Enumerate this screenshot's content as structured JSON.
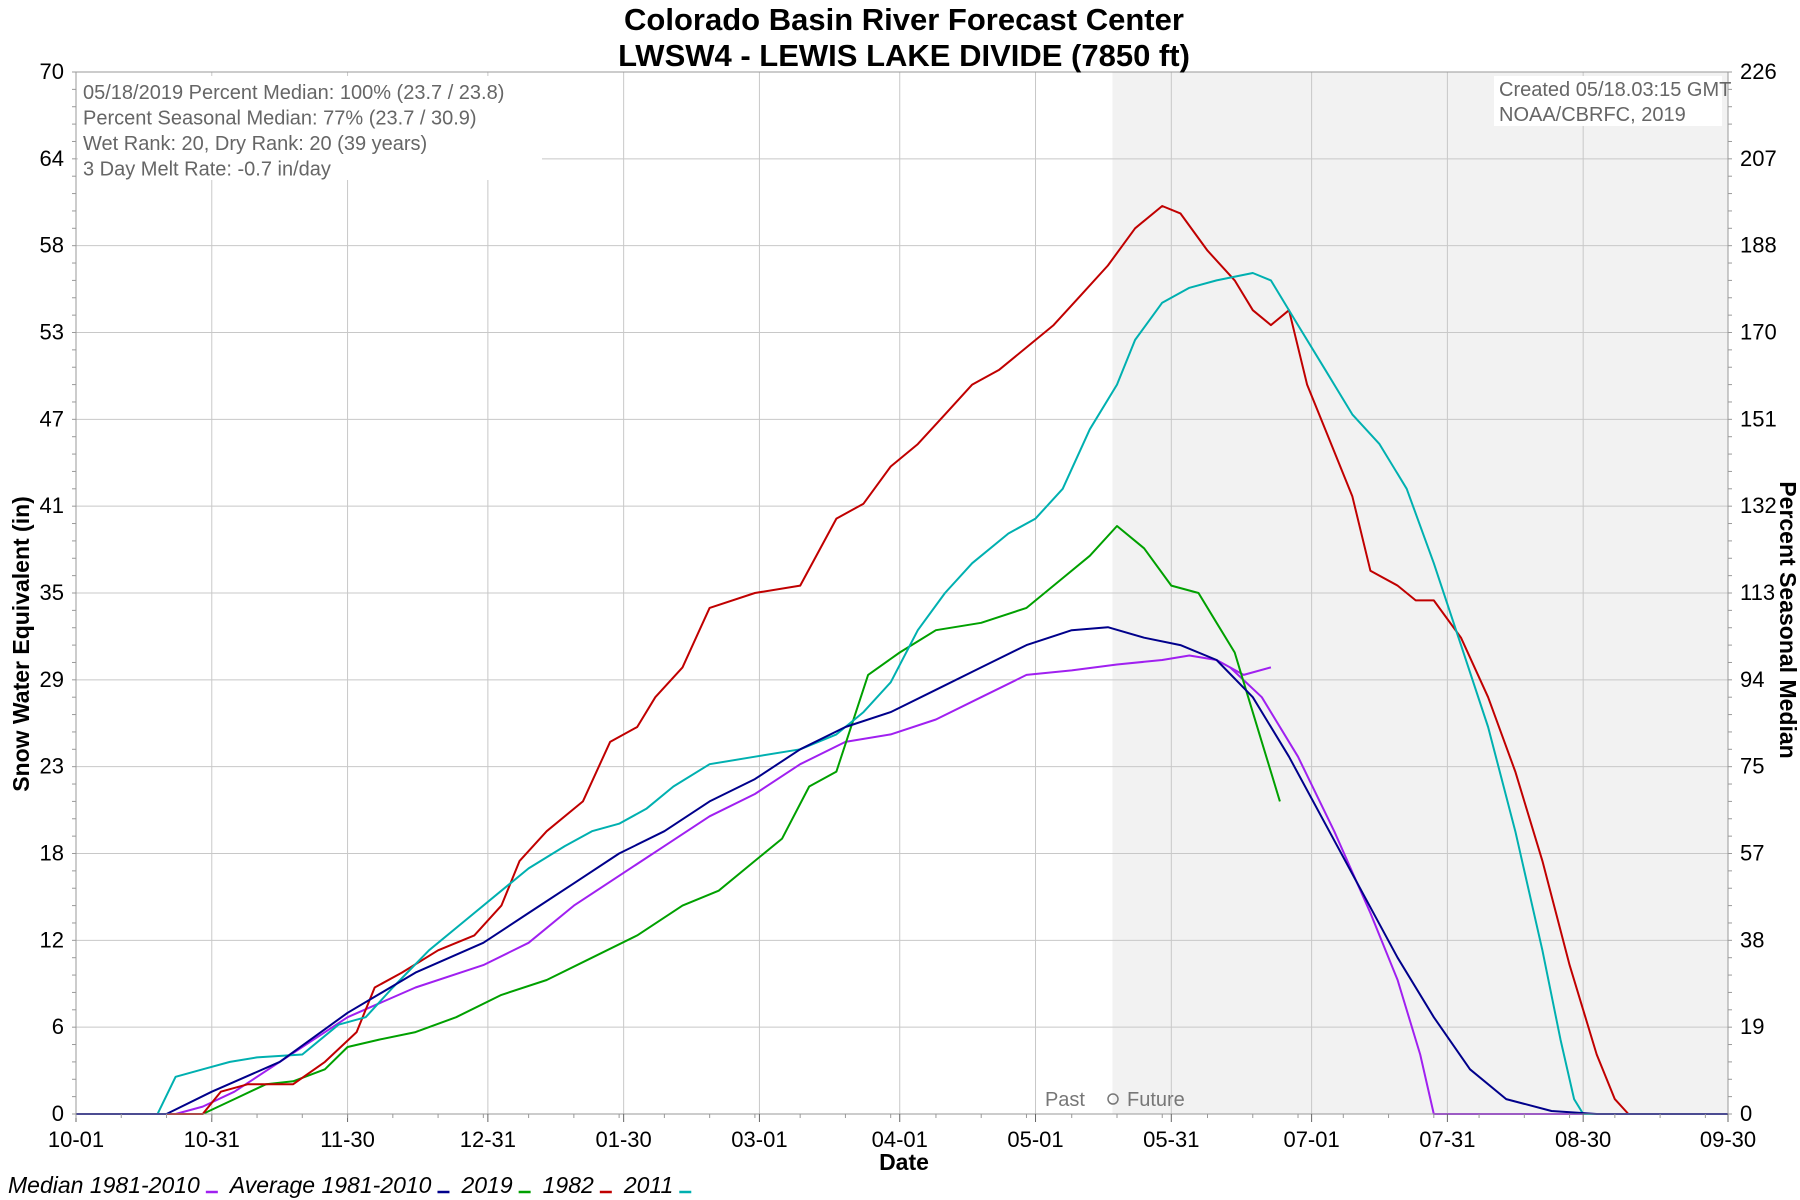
{
  "chart_data": {
    "type": "line",
    "title": "Colorado Basin River Forecast Center",
    "subtitle": "LWSW4 - LEWIS LAKE DIVIDE (7850 ft)",
    "xlabel": "Date",
    "ylabel": "Snow Water Equivalent (in)",
    "y2label": "Percent Seasonal Median",
    "ylim": [
      0,
      70
    ],
    "y2lim": [
      0,
      226
    ],
    "xlim_days": [
      0,
      365
    ],
    "x_ticks": [
      "10-01",
      "10-31",
      "11-30",
      "12-31",
      "01-30",
      "03-01",
      "04-01",
      "05-01",
      "05-31",
      "07-01",
      "07-31",
      "08-30",
      "09-30"
    ],
    "y_ticks": [
      "0",
      "6",
      "12",
      "18",
      "23",
      "29",
      "35",
      "41",
      "47",
      "53",
      "58",
      "64",
      "70"
    ],
    "y2_ticks": [
      "0",
      "19",
      "38",
      "57",
      "75",
      "94",
      "113",
      "132",
      "151",
      "170",
      "188",
      "207",
      "226"
    ],
    "grid": true,
    "future_shade_start": "05-18",
    "past_future_label": [
      "Past",
      "Future"
    ],
    "info_text": [
      "05/18/2019 Percent Median: 100% (23.7 / 23.8)",
      "Percent Seasonal Median: 77% (23.7 / 30.9)",
      "Wet Rank: 20, Dry Rank: 20  (39 years)",
      "3 Day Melt Rate: -0.7 in/day"
    ],
    "credit_text": [
      "Created 05/18.03:15 GMT",
      "NOAA/CBRFC, 2019"
    ],
    "series": [
      {
        "name": "Median 1981-2010",
        "color": "#a020f0",
        "points": [
          [
            0,
            0
          ],
          [
            22,
            0
          ],
          [
            28,
            0.5
          ],
          [
            35,
            1.5
          ],
          [
            45,
            3.5
          ],
          [
            60,
            6.5
          ],
          [
            75,
            8.5
          ],
          [
            90,
            10
          ],
          [
            100,
            11.5
          ],
          [
            110,
            14
          ],
          [
            120,
            16
          ],
          [
            130,
            18
          ],
          [
            140,
            20
          ],
          [
            150,
            21.5
          ],
          [
            160,
            23.5
          ],
          [
            170,
            25
          ],
          [
            180,
            25.5
          ],
          [
            190,
            26.5
          ],
          [
            200,
            28
          ],
          [
            210,
            29.5
          ],
          [
            220,
            29.8
          ],
          [
            230,
            30.2
          ],
          [
            240,
            30.5
          ],
          [
            246,
            30.8
          ],
          [
            252,
            30.5
          ],
          [
            258,
            29.5
          ],
          [
            264,
            30
          ]
        ],
        "ext": [
          [
            255,
            30
          ],
          [
            262,
            28
          ],
          [
            270,
            24
          ],
          [
            278,
            19
          ],
          [
            286,
            13.5
          ],
          [
            292,
            9
          ],
          [
            297,
            4
          ],
          [
            300,
            0
          ],
          [
            365,
            0
          ]
        ]
      },
      {
        "name": "Average 1981-2010",
        "color": "#00008b",
        "points": [
          [
            0,
            0
          ],
          [
            20,
            0
          ],
          [
            30,
            1.5
          ],
          [
            45,
            3.5
          ],
          [
            60,
            6.8
          ],
          [
            75,
            9.5
          ],
          [
            90,
            11.5
          ],
          [
            100,
            13.5
          ],
          [
            110,
            15.5
          ],
          [
            120,
            17.5
          ],
          [
            130,
            19
          ],
          [
            140,
            21
          ],
          [
            150,
            22.5
          ],
          [
            160,
            24.5
          ],
          [
            170,
            26
          ],
          [
            180,
            27
          ],
          [
            190,
            28.5
          ],
          [
            200,
            30
          ],
          [
            210,
            31.5
          ],
          [
            220,
            32.5
          ],
          [
            228,
            32.7
          ],
          [
            236,
            32
          ],
          [
            244,
            31.5
          ],
          [
            252,
            30.5
          ],
          [
            260,
            28
          ],
          [
            268,
            24
          ],
          [
            276,
            19.5
          ],
          [
            284,
            15
          ],
          [
            292,
            10.5
          ],
          [
            300,
            6.5
          ],
          [
            308,
            3
          ],
          [
            316,
            1
          ],
          [
            326,
            0.2
          ],
          [
            336,
            0
          ],
          [
            365,
            0
          ]
        ]
      },
      {
        "name": "2019",
        "color": "#00a000",
        "points": [
          [
            0,
            0
          ],
          [
            28,
            0
          ],
          [
            35,
            1
          ],
          [
            42,
            2
          ],
          [
            48,
            2.2
          ],
          [
            55,
            3
          ],
          [
            60,
            4.5
          ],
          [
            67,
            5
          ],
          [
            75,
            5.5
          ],
          [
            84,
            6.5
          ],
          [
            94,
            8
          ],
          [
            104,
            9
          ],
          [
            114,
            10.5
          ],
          [
            124,
            12
          ],
          [
            134,
            14
          ],
          [
            142,
            15
          ],
          [
            150,
            17
          ],
          [
            156,
            18.5
          ],
          [
            162,
            22
          ],
          [
            168,
            23
          ],
          [
            175,
            29.5
          ],
          [
            182,
            31
          ],
          [
            190,
            32.5
          ],
          [
            200,
            33
          ],
          [
            210,
            34
          ],
          [
            218,
            36
          ],
          [
            224,
            37.5
          ],
          [
            230,
            39.5
          ],
          [
            236,
            38
          ],
          [
            242,
            35.5
          ],
          [
            248,
            35
          ],
          [
            252,
            33
          ],
          [
            256,
            31
          ],
          [
            258,
            29
          ],
          [
            262,
            25
          ],
          [
            266,
            21
          ]
        ]
      },
      {
        "name": "1982",
        "color": "#c00000",
        "points": [
          [
            0,
            0
          ],
          [
            28,
            0
          ],
          [
            32,
            1.5
          ],
          [
            38,
            2
          ],
          [
            48,
            2
          ],
          [
            55,
            3.5
          ],
          [
            62,
            5.5
          ],
          [
            66,
            8.5
          ],
          [
            72,
            9.5
          ],
          [
            80,
            11
          ],
          [
            88,
            12
          ],
          [
            94,
            14
          ],
          [
            98,
            17
          ],
          [
            104,
            19
          ],
          [
            112,
            21
          ],
          [
            118,
            25
          ],
          [
            124,
            26
          ],
          [
            128,
            28
          ],
          [
            134,
            30
          ],
          [
            140,
            34
          ],
          [
            150,
            35
          ],
          [
            160,
            35.5
          ],
          [
            168,
            40
          ],
          [
            174,
            41
          ],
          [
            180,
            43.5
          ],
          [
            186,
            45
          ],
          [
            192,
            47
          ],
          [
            198,
            49
          ],
          [
            204,
            50
          ],
          [
            210,
            51.5
          ],
          [
            216,
            53
          ],
          [
            222,
            55
          ],
          [
            228,
            57
          ],
          [
            234,
            59.5
          ],
          [
            240,
            61
          ],
          [
            244,
            60.5
          ],
          [
            250,
            58
          ],
          [
            256,
            56
          ],
          [
            260,
            54
          ],
          [
            264,
            53
          ],
          [
            268,
            54
          ],
          [
            272,
            49
          ],
          [
            276,
            46
          ],
          [
            282,
            41.5
          ],
          [
            286,
            36.5
          ],
          [
            292,
            35.5
          ],
          [
            296,
            34.5
          ],
          [
            300,
            34.5
          ],
          [
            306,
            32
          ],
          [
            312,
            28
          ],
          [
            318,
            23
          ],
          [
            324,
            17
          ],
          [
            330,
            10
          ],
          [
            336,
            4
          ],
          [
            340,
            1
          ],
          [
            343,
            0
          ],
          [
            365,
            0
          ]
        ]
      },
      {
        "name": "2011",
        "color": "#00b0b0",
        "points": [
          [
            0,
            0
          ],
          [
            18,
            0
          ],
          [
            22,
            2.5
          ],
          [
            28,
            3
          ],
          [
            34,
            3.5
          ],
          [
            40,
            3.8
          ],
          [
            50,
            4
          ],
          [
            58,
            6
          ],
          [
            64,
            6.5
          ],
          [
            70,
            8.5
          ],
          [
            78,
            11
          ],
          [
            86,
            13
          ],
          [
            94,
            15
          ],
          [
            100,
            16.5
          ],
          [
            108,
            18
          ],
          [
            114,
            19
          ],
          [
            120,
            19.5
          ],
          [
            126,
            20.5
          ],
          [
            132,
            22
          ],
          [
            140,
            23.5
          ],
          [
            150,
            24
          ],
          [
            160,
            24.5
          ],
          [
            168,
            25.5
          ],
          [
            174,
            27
          ],
          [
            180,
            29
          ],
          [
            186,
            32.5
          ],
          [
            192,
            35
          ],
          [
            198,
            37
          ],
          [
            206,
            39
          ],
          [
            212,
            40
          ],
          [
            218,
            42
          ],
          [
            224,
            46
          ],
          [
            230,
            49
          ],
          [
            234,
            52
          ],
          [
            240,
            54.5
          ],
          [
            246,
            55.5
          ],
          [
            252,
            56
          ],
          [
            260,
            56.5
          ],
          [
            264,
            56
          ],
          [
            270,
            53
          ],
          [
            276,
            50
          ],
          [
            282,
            47
          ],
          [
            288,
            45
          ],
          [
            294,
            42
          ],
          [
            300,
            37
          ],
          [
            306,
            31.5
          ],
          [
            312,
            26
          ],
          [
            318,
            19
          ],
          [
            324,
            11
          ],
          [
            328,
            5
          ],
          [
            331,
            1
          ],
          [
            333,
            0
          ],
          [
            365,
            0
          ]
        ]
      }
    ]
  }
}
